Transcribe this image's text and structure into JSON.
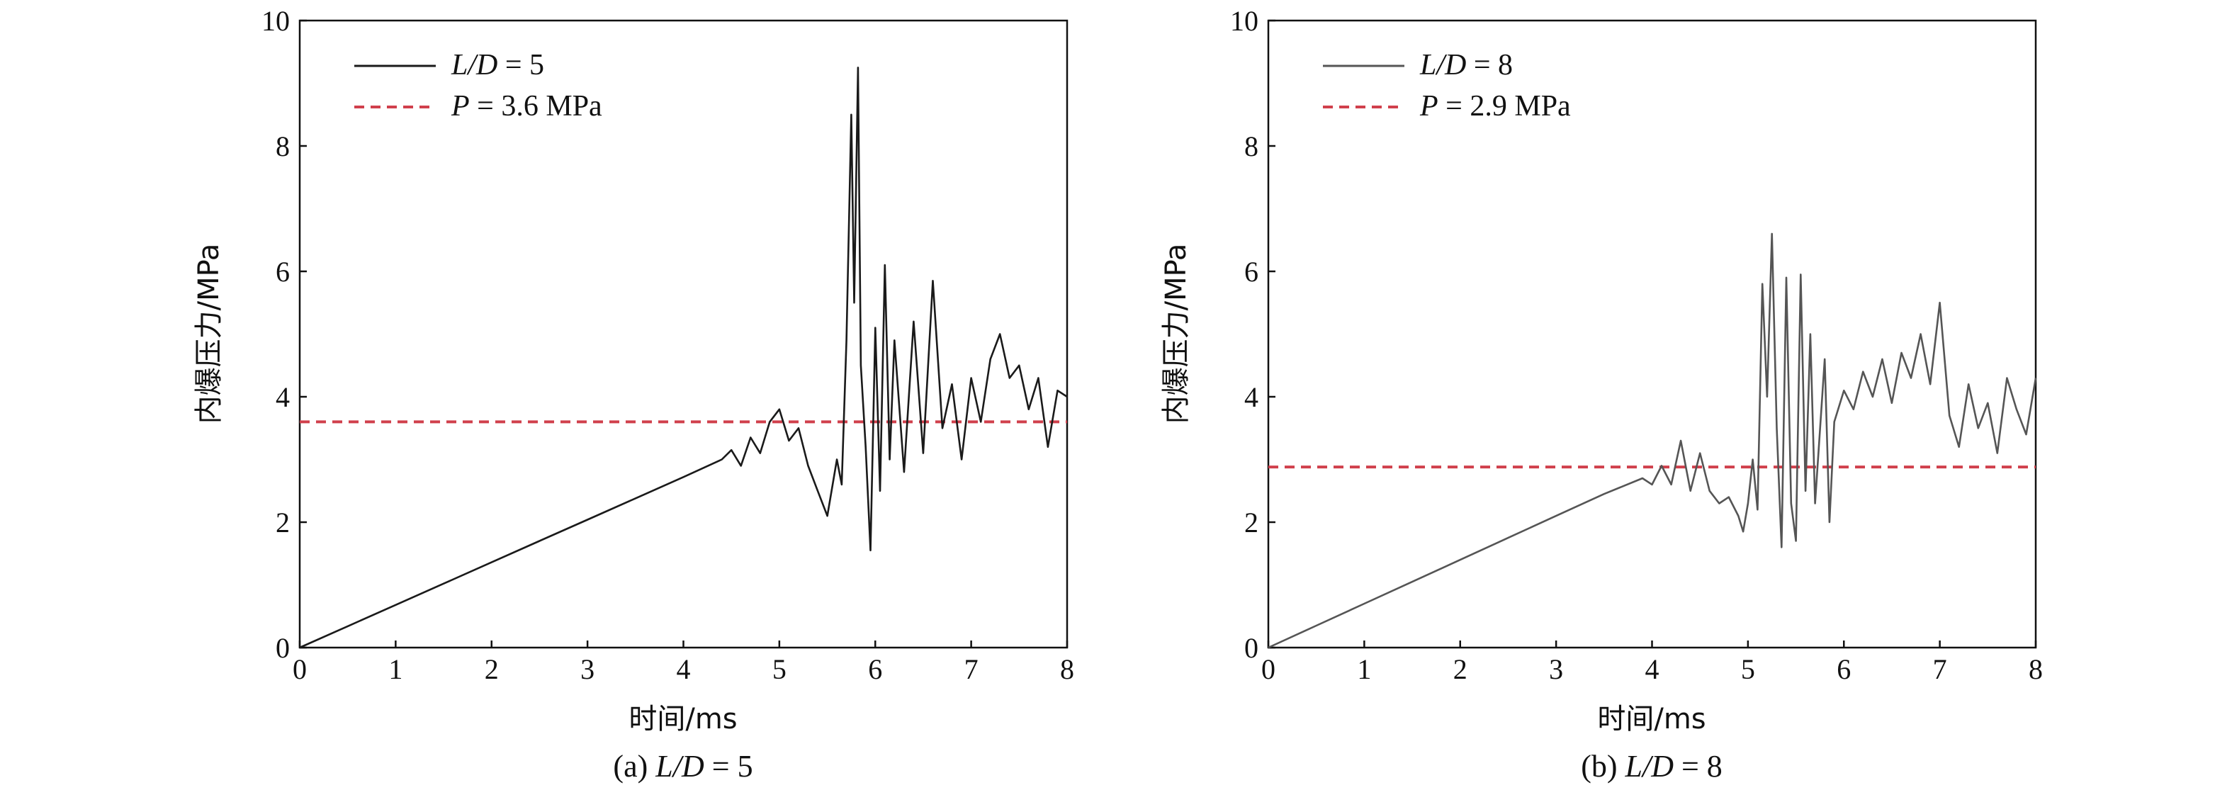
{
  "chart_data": [
    {
      "type": "line",
      "caption": {
        "prefix": "(a) ",
        "var": "L/D",
        "rest": " = 5"
      },
      "xlabel": "时间/ms",
      "ylabel": "内爆压力/MPa",
      "xlim": [
        0,
        8
      ],
      "ylim": [
        0,
        10
      ],
      "xticks": [
        0,
        1,
        2,
        3,
        4,
        5,
        6,
        7,
        8
      ],
      "yticks": [
        0,
        2,
        4,
        6,
        8,
        10
      ],
      "legend_position": "top-left",
      "series": [
        {
          "name": "L/D = 5",
          "legend": {
            "var": "L/D",
            "rest": " = 5"
          },
          "color": "#1a1a1a",
          "style": "solid",
          "x": [
            0,
            0.5,
            1.0,
            1.5,
            2.0,
            2.5,
            3.0,
            3.5,
            4.0,
            4.4,
            4.5,
            4.6,
            4.7,
            4.8,
            4.9,
            5.0,
            5.1,
            5.2,
            5.3,
            5.4,
            5.5,
            5.6,
            5.65,
            5.7,
            5.75,
            5.78,
            5.82,
            5.85,
            5.9,
            5.95,
            6.0,
            6.05,
            6.1,
            6.15,
            6.2,
            6.3,
            6.4,
            6.5,
            6.6,
            6.7,
            6.8,
            6.9,
            7.0,
            7.1,
            7.2,
            7.3,
            7.4,
            7.5,
            7.6,
            7.7,
            7.8,
            7.9,
            8.0
          ],
          "y": [
            0,
            0.34,
            0.68,
            1.02,
            1.36,
            1.7,
            2.04,
            2.38,
            2.72,
            3.0,
            3.15,
            2.9,
            3.35,
            3.1,
            3.6,
            3.8,
            3.3,
            3.5,
            2.9,
            2.5,
            2.1,
            3.0,
            2.6,
            4.9,
            8.5,
            5.5,
            9.25,
            4.5,
            3.2,
            1.55,
            5.1,
            2.5,
            6.1,
            3.0,
            4.9,
            2.8,
            5.2,
            3.1,
            5.85,
            3.5,
            4.2,
            3.0,
            4.3,
            3.6,
            4.6,
            5.0,
            4.3,
            4.5,
            3.8,
            4.3,
            3.2,
            4.1,
            4.0
          ]
        },
        {
          "name": "P = 3.6 MPa",
          "legend": {
            "var": "P",
            "rest": " = 3.6 MPa"
          },
          "color": "#d0404c",
          "style": "dashed",
          "x": [
            0,
            8
          ],
          "y": [
            3.6,
            3.6
          ]
        }
      ]
    },
    {
      "type": "line",
      "caption": {
        "prefix": "(b) ",
        "var": "L/D",
        "rest": " = 8"
      },
      "xlabel": "时间/ms",
      "ylabel": "内爆压力/MPa",
      "xlim": [
        0,
        8
      ],
      "ylim": [
        0,
        10
      ],
      "xticks": [
        0,
        1,
        2,
        3,
        4,
        5,
        6,
        7,
        8
      ],
      "yticks": [
        0,
        2,
        4,
        6,
        8,
        10
      ],
      "legend_position": "top-left",
      "series": [
        {
          "name": "L/D = 8",
          "legend": {
            "var": "L/D",
            "rest": " = 8"
          },
          "color": "#555555",
          "style": "solid",
          "x": [
            0,
            0.5,
            1.0,
            1.5,
            2.0,
            2.5,
            3.0,
            3.5,
            3.9,
            4.0,
            4.1,
            4.2,
            4.3,
            4.4,
            4.5,
            4.6,
            4.7,
            4.8,
            4.9,
            4.95,
            5.0,
            5.05,
            5.1,
            5.15,
            5.2,
            5.25,
            5.3,
            5.35,
            5.4,
            5.45,
            5.5,
            5.55,
            5.6,
            5.65,
            5.7,
            5.8,
            5.85,
            5.9,
            6.0,
            6.1,
            6.2,
            6.3,
            6.4,
            6.5,
            6.6,
            6.7,
            6.8,
            6.9,
            7.0,
            7.1,
            7.2,
            7.3,
            7.4,
            7.5,
            7.6,
            7.7,
            7.8,
            7.9,
            8.0
          ],
          "y": [
            0,
            0.35,
            0.7,
            1.05,
            1.4,
            1.75,
            2.1,
            2.45,
            2.7,
            2.6,
            2.9,
            2.6,
            3.3,
            2.5,
            3.1,
            2.5,
            2.3,
            2.4,
            2.1,
            1.85,
            2.3,
            3.0,
            2.2,
            5.8,
            4.0,
            6.6,
            3.5,
            1.6,
            5.9,
            2.3,
            1.7,
            5.95,
            2.5,
            5.0,
            2.3,
            4.6,
            2.0,
            3.6,
            4.1,
            3.8,
            4.4,
            4.0,
            4.6,
            3.9,
            4.7,
            4.3,
            5.0,
            4.2,
            5.5,
            3.7,
            3.2,
            4.2,
            3.5,
            3.9,
            3.1,
            4.3,
            3.8,
            3.4,
            4.3
          ]
        },
        {
          "name": "P = 2.9 MPa",
          "legend": {
            "var": "P",
            "rest": " = 2.9 MPa"
          },
          "color": "#d0404c",
          "style": "dashed",
          "x": [
            0,
            8
          ],
          "y": [
            2.88,
            2.88
          ]
        }
      ]
    }
  ]
}
